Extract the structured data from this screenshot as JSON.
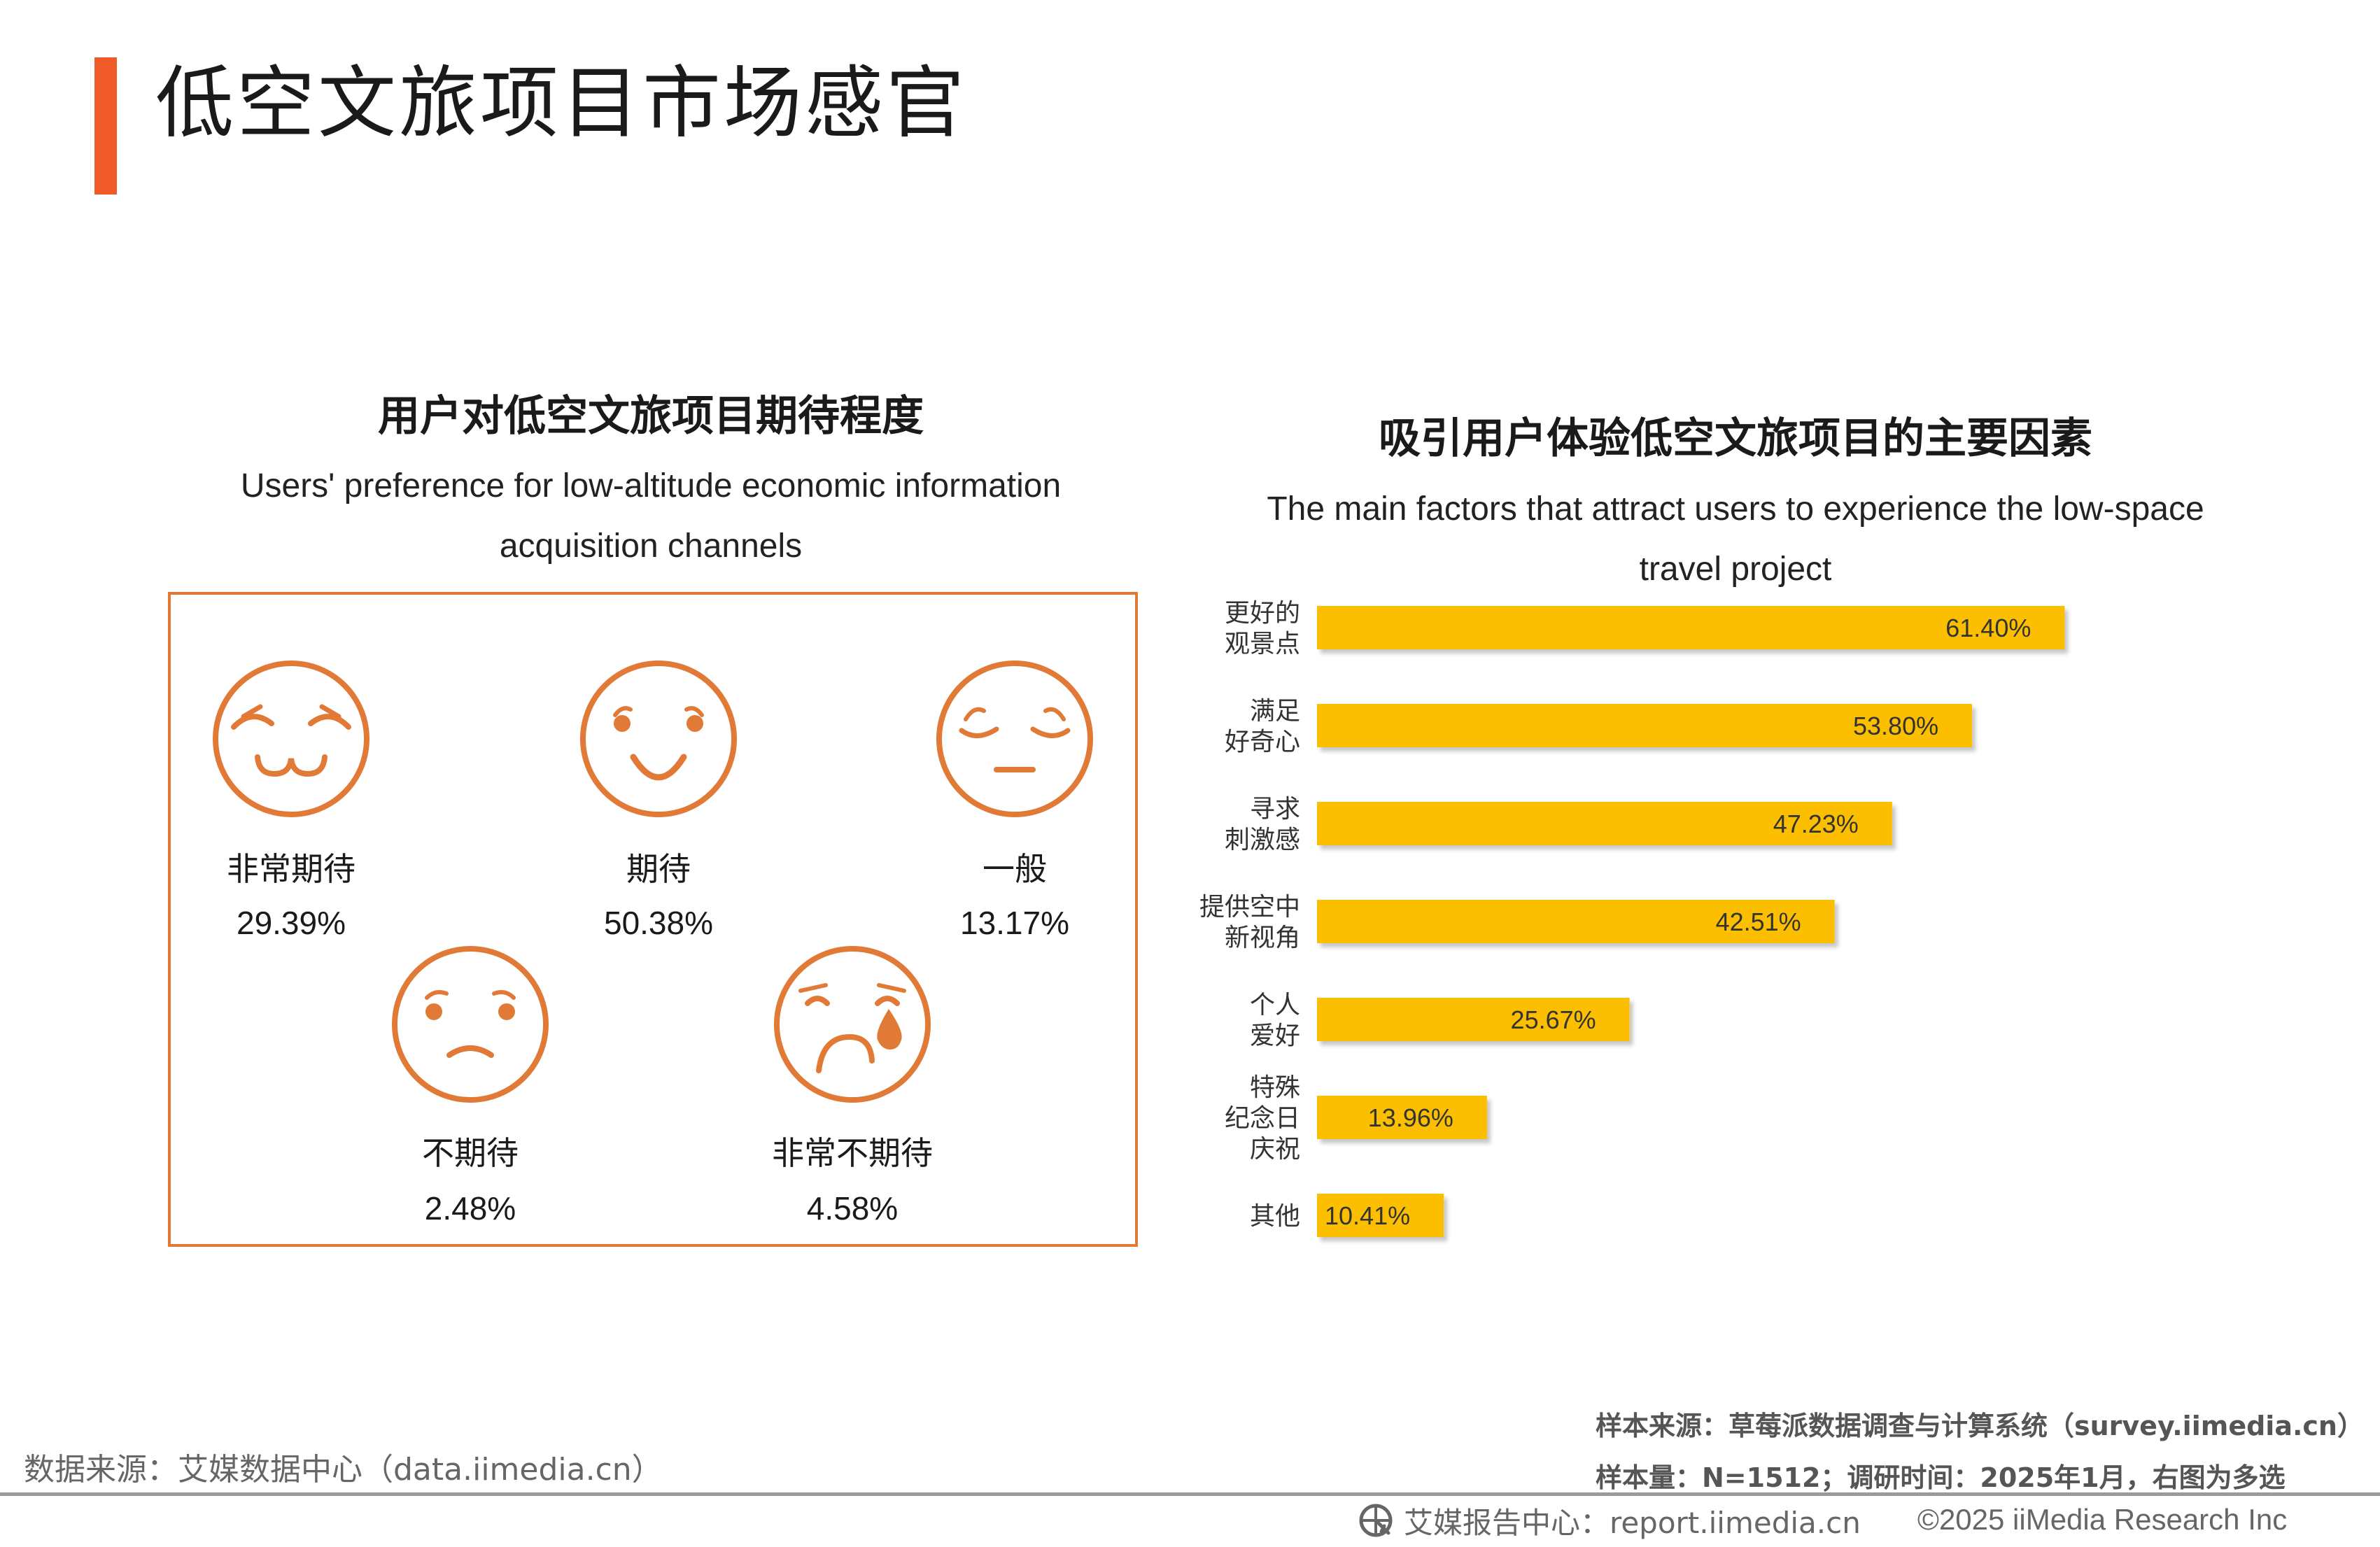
{
  "header": {
    "title": "低空文旅项目市场感官"
  },
  "left_chart": {
    "title": "用户对低空文旅项目期待程度",
    "subtitle_line1": "Users' preference for low-altitude economic information",
    "subtitle_line2": "acquisition channels"
  },
  "right_chart": {
    "title": "吸引用户体验低空文旅项目的主要因素",
    "subtitle_line1": "The main factors that attract users to experience the low-space",
    "subtitle_line2": "travel project"
  },
  "chart_data": [
    {
      "type": "table",
      "title": "用户对低空文旅项目期待程度",
      "categories": [
        "非常期待",
        "期待",
        "一般",
        "不期待",
        "非常不期待"
      ],
      "values": [
        "29.39%",
        "50.38%",
        "13.17%",
        "2.48%",
        "4.58%"
      ],
      "icons": [
        "very-happy-face-icon",
        "happy-face-icon",
        "neutral-face-icon",
        "unhappy-face-icon",
        "crying-face-icon"
      ]
    },
    {
      "type": "bar",
      "orientation": "horizontal",
      "title": "吸引用户体验低空文旅项目的主要因素",
      "categories": [
        [
          "更好的",
          "观景点"
        ],
        [
          "满足",
          "好奇心"
        ],
        [
          "寻求",
          "刺激感"
        ],
        [
          "提供空中",
          "新视角"
        ],
        [
          "个人",
          "爱好"
        ],
        [
          "特殊",
          "纪念日",
          "庆祝"
        ],
        [
          "其他"
        ]
      ],
      "values": [
        61.4,
        53.8,
        47.23,
        42.51,
        25.67,
        13.96,
        10.41
      ],
      "value_labels": [
        "61.40%",
        "53.80%",
        "47.23%",
        "42.51%",
        "25.67%",
        "13.96%",
        "10.41%"
      ],
      "xlim": [
        0,
        70
      ],
      "bar_color": "#fcbf00",
      "xlabel": "",
      "ylabel": "",
      "grid": false,
      "legend": "none"
    }
  ],
  "colors": {
    "accent": "#f05a28",
    "face_stroke": "#e07a36",
    "bar": "#fcbf00"
  },
  "footer": {
    "source_left": "数据来源：艾媒数据中心（data.iimedia.cn）",
    "sample_source": "样本来源：草莓派数据调查与计算系统（survey.iimedia.cn）",
    "sample_size": "样本量：N=1512；调研时间：2025年1月，右图为多选",
    "brand": "艾媒报告中心：report.iimedia.cn",
    "copyright": "©2025  iiMedia Research Inc"
  }
}
